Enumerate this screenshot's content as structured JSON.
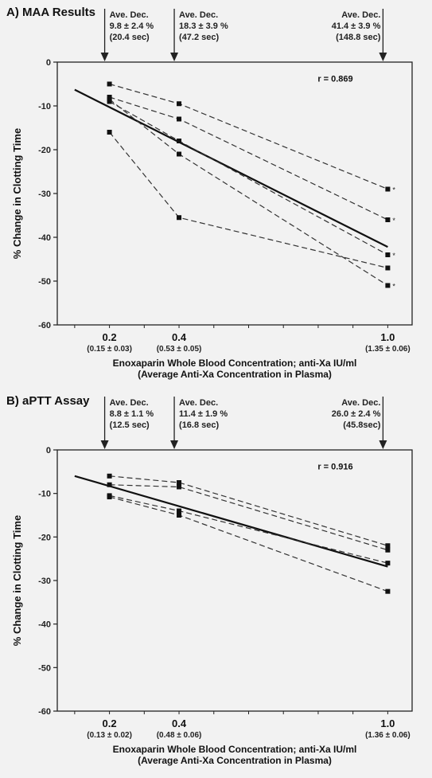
{
  "chart_data": [
    {
      "type": "line",
      "title": "A) MAA Results",
      "ylabel": "% Change in Clotting Time",
      "xlabel": "Enoxaparin Whole Blood Concentration; anti-Xa IU/ml",
      "xlabel2": "(Average Anti-Xa Concentration in Plasma)",
      "ylim": [
        -60,
        0
      ],
      "yticks": [
        "0",
        "-10",
        "-20",
        "-30",
        "-40",
        "-50",
        "-60"
      ],
      "xticks": [
        {
          "value": 0.2,
          "label": "0.2",
          "sub": "(0.15 ± 0.03)"
        },
        {
          "value": 0.4,
          "label": "0.4",
          "sub": "(0.53 ± 0.05)"
        },
        {
          "value": 1.0,
          "label": "1.0",
          "sub": "(1.35 ± 0.06)"
        }
      ],
      "annotations": [
        {
          "x": 0.2,
          "lines": [
            "Ave. Dec.",
            "9.8 ± 2.4 %",
            "(20.4 sec)"
          ]
        },
        {
          "x": 0.4,
          "lines": [
            "Ave. Dec.",
            "18.3 ± 3.9 %",
            "(47.2 sec)"
          ]
        },
        {
          "x": 1.0,
          "lines": [
            "Ave. Dec.",
            "41.4 ± 3.9 %",
            "(148.8 sec)"
          ]
        }
      ],
      "r_label": "r = 0.869",
      "x": [
        0.2,
        0.4,
        1.0
      ],
      "series": [
        {
          "values": [
            -5,
            -9.5,
            -29
          ],
          "star": "*"
        },
        {
          "values": [
            -8,
            -13,
            -36
          ],
          "star": "*"
        },
        {
          "values": [
            -9,
            -18,
            -44
          ],
          "star": "*"
        },
        {
          "values": [
            -8.5,
            -21,
            -51
          ],
          "star": "*"
        },
        {
          "values": [
            -16,
            -35.5,
            -47
          ],
          "star": ""
        }
      ],
      "regression": {
        "x": [
          0.1,
          1.0
        ],
        "y": [
          -6.3,
          -42.2
        ]
      }
    },
    {
      "type": "line",
      "title": "B) aPTT Assay",
      "ylabel": "% Change in Clotting Time",
      "xlabel": "Enoxaparin Whole Blood Concentration; anti-Xa IU/ml",
      "xlabel2": "(Average Anti-Xa Concentration in Plasma)",
      "ylim": [
        -60,
        0
      ],
      "yticks": [
        "0",
        "-10",
        "-20",
        "-30",
        "-40",
        "-50",
        "-60"
      ],
      "xticks": [
        {
          "value": 0.2,
          "label": "0.2",
          "sub": "(0.13 ± 0.02)"
        },
        {
          "value": 0.4,
          "label": "0.4",
          "sub": "(0.48 ± 0.06)"
        },
        {
          "value": 1.0,
          "label": "1.0",
          "sub": "(1.36 ± 0.06)"
        }
      ],
      "annotations": [
        {
          "x": 0.2,
          "lines": [
            "Ave. Dec.",
            "8.8 ± 1.1 %",
            "(12.5 sec)"
          ]
        },
        {
          "x": 0.4,
          "lines": [
            "Ave. Dec.",
            "11.4 ± 1.9 %",
            "(16.8 sec)"
          ]
        },
        {
          "x": 1.0,
          "lines": [
            "Ave. Dec.",
            "26.0 ± 2.4 %",
            "(45.8sec)"
          ]
        }
      ],
      "r_label": "r = 0.916",
      "x": [
        0.2,
        0.4,
        1.0
      ],
      "series": [
        {
          "values": [
            -6,
            -7.5,
            -22
          ],
          "star": ""
        },
        {
          "values": [
            -8,
            -8.5,
            -23
          ],
          "star": ""
        },
        {
          "values": [
            -10.5,
            -14,
            -26
          ],
          "star": ""
        },
        {
          "values": [
            -10.8,
            -15,
            -32.5
          ],
          "star": ""
        }
      ],
      "regression": {
        "x": [
          0.1,
          1.0
        ],
        "y": [
          -6.0,
          -26.8
        ]
      }
    }
  ]
}
